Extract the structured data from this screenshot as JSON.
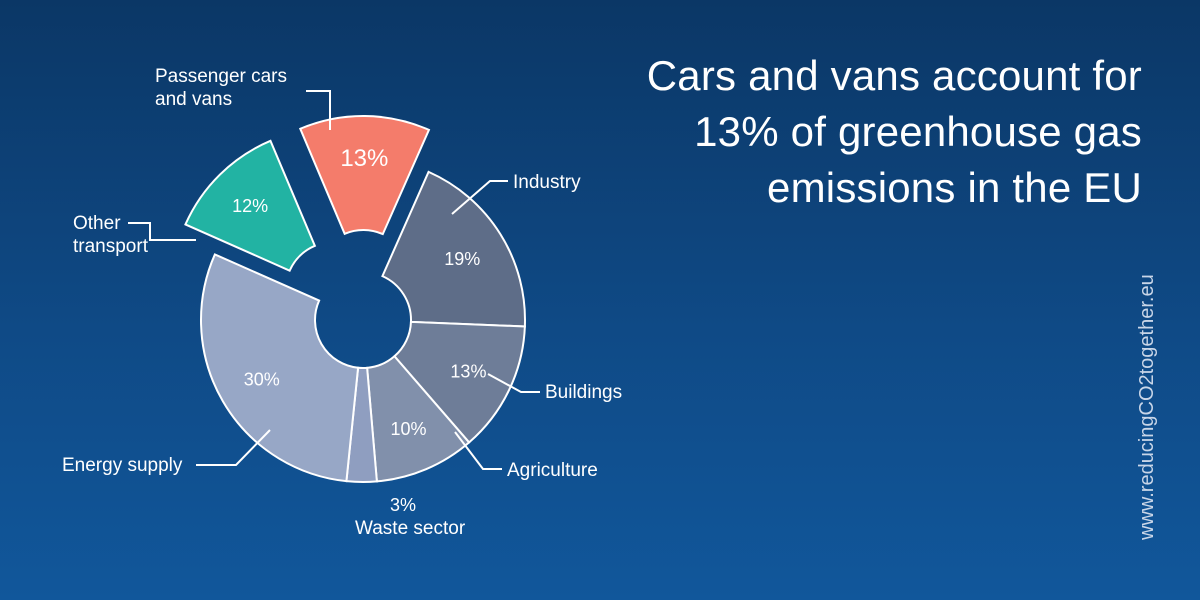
{
  "title_lines": [
    "Cars and vans account for",
    "13% of greenhouse gas",
    "emissions in the EU"
  ],
  "source": "www.reducingCO2together.eu",
  "chart_data": {
    "type": "pie",
    "title": "Cars and vans account for 13% of greenhouse gas emissions in the EU",
    "slices": [
      {
        "name": "Passenger cars and vans",
        "label_lines": [
          "Passenger cars",
          "and vans"
        ],
        "value": 13,
        "value_label": "13%",
        "color": "#f47c6b",
        "exploded": true
      },
      {
        "name": "Industry",
        "label_lines": [
          "Industry"
        ],
        "value": 19,
        "value_label": "19%",
        "color": "#5e6d88"
      },
      {
        "name": "Buildings",
        "label_lines": [
          "Buildings"
        ],
        "value": 13,
        "value_label": "13%",
        "color": "#6e7d98"
      },
      {
        "name": "Agriculture",
        "label_lines": [
          "Agriculture"
        ],
        "value": 10,
        "value_label": "10%",
        "color": "#8190ab"
      },
      {
        "name": "Waste sector",
        "label_lines": [
          "Waste sector"
        ],
        "value": 3,
        "value_label": "3%",
        "color": "#8f9ec0"
      },
      {
        "name": "Energy supply",
        "label_lines": [
          "Energy supply"
        ],
        "value": 30,
        "value_label": "30%",
        "color": "#97a7c6"
      },
      {
        "name": "Other transport",
        "label_lines": [
          "Other",
          "transport"
        ],
        "value": 12,
        "value_label": "12%",
        "color": "#22b3a3",
        "exploded": true
      }
    ]
  }
}
